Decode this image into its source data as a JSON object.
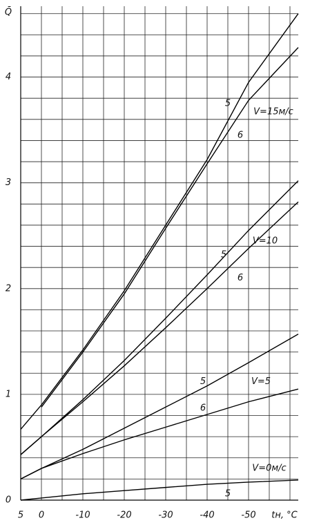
{
  "chart_data": {
    "type": "line",
    "ylabel": "Q̄",
    "xlabel": "tн, °C",
    "xlim": [
      5,
      -62
    ],
    "ylim": [
      0,
      4.67
    ],
    "xticks": [
      5,
      0,
      -10,
      -20,
      -30,
      -40,
      -50
    ],
    "yticks": [
      0,
      1,
      2,
      3,
      4
    ],
    "xgrid": [
      5,
      0,
      -5,
      -10,
      -15,
      -20,
      -25,
      -30,
      -35,
      -40,
      -45,
      -50,
      -55,
      -60
    ],
    "ygrid": [
      0,
      0.2,
      0.4,
      0.6,
      0.8,
      1,
      1.2,
      1.4,
      1.6,
      1.8,
      2,
      2.2,
      2.4,
      2.6,
      2.8,
      3,
      3.2,
      3.4,
      3.6,
      3.8,
      4,
      4.2,
      4.4,
      4.6
    ],
    "grid": true,
    "color": "#000000",
    "x": [
      5,
      0,
      -10,
      -20,
      -30,
      -40,
      -50,
      -62
    ],
    "series": [
      {
        "values": [
          0.67,
          0.9,
          1.42,
          1.98,
          2.6,
          3.22,
          3.95,
          4.6
        ]
      },
      {
        "values": [
          null,
          0.88,
          1.4,
          1.95,
          2.57,
          3.18,
          3.78,
          4.28
        ]
      },
      {
        "values": [
          0.43,
          0.6,
          0.95,
          1.32,
          1.72,
          2.13,
          2.55,
          3.02
        ]
      },
      {
        "values": [
          0.43,
          0.6,
          0.93,
          1.27,
          1.63,
          2.0,
          2.38,
          2.82
        ]
      },
      {
        "values": [
          0.2,
          0.3,
          0.48,
          0.68,
          0.88,
          1.08,
          1.3,
          1.57
        ]
      },
      {
        "values": [
          0.2,
          0.3,
          0.44,
          0.57,
          0.69,
          0.81,
          0.93,
          1.05
        ]
      },
      {
        "values": [
          0,
          0.02,
          0.06,
          0.09,
          0.12,
          0.15,
          0.17,
          0.19
        ]
      }
    ],
    "annotations": [
      {
        "text": "5",
        "x": -45,
        "y": 3.75
      },
      {
        "text": "6",
        "x": -48,
        "y": 3.45
      },
      {
        "text": "V=15м/с",
        "x": -56,
        "y": 3.67
      },
      {
        "text": "5",
        "x": -44,
        "y": 2.32
      },
      {
        "text": "6",
        "x": -48,
        "y": 2.1
      },
      {
        "text": "V=10",
        "x": -54,
        "y": 2.45
      },
      {
        "text": "5",
        "x": -39,
        "y": 1.12
      },
      {
        "text": "6",
        "x": -39,
        "y": 0.87
      },
      {
        "text": "V=5",
        "x": -53,
        "y": 1.12
      },
      {
        "text": "V=0м/с",
        "x": -55,
        "y": 0.3
      },
      {
        "text": "5",
        "x": -45,
        "y": 0.06
      }
    ]
  }
}
